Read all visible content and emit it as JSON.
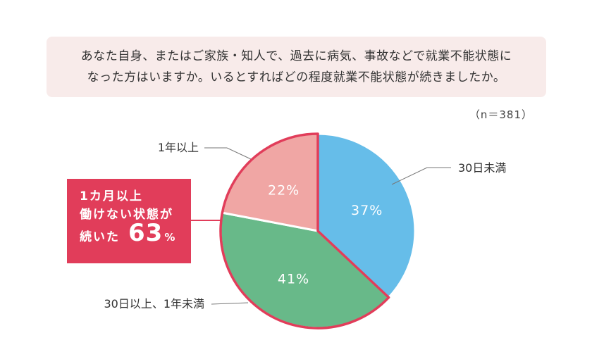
{
  "question": {
    "line1": "あなた自身、またはご家族・知人で、過去に病気、事故などで就業不能状態に",
    "line2": "なった方はいますか。いるとすればどの程度就業不能状態が続きましたか。"
  },
  "sample_size": "（n＝381）",
  "callout": {
    "line1": "1カ月以上",
    "line2": "働けない状態が",
    "line3": "続いた",
    "value": "63",
    "unit": "%"
  },
  "chart_data": {
    "type": "pie",
    "slices": [
      {
        "label": "30日未満",
        "value": 37,
        "value_label": "37%",
        "color": "#66bde9"
      },
      {
        "label": "30日以上、1年未満",
        "value": 41,
        "value_label": "41%",
        "color": "#68b989"
      },
      {
        "label": "1年以上",
        "value": 22,
        "value_label": "22%",
        "color": "#f0a6a4"
      }
    ],
    "highlight_color": "#e13d5a"
  }
}
